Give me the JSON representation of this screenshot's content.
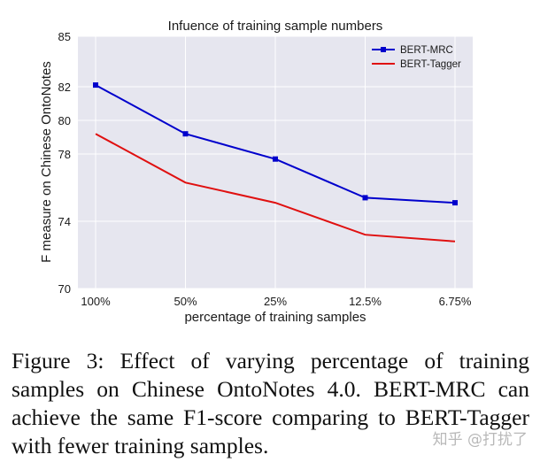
{
  "chart_data": {
    "type": "line",
    "title": "Infuence of training sample numbers",
    "xlabel": "percentage of training samples",
    "ylabel": "F measure on Chinese OntoNotes",
    "categories": [
      "100%",
      "50%",
      "25%",
      "12.5%",
      "6.75%"
    ],
    "yticks": [
      70,
      74,
      78,
      80,
      82,
      85
    ],
    "ylim": [
      70,
      85
    ],
    "grid": true,
    "legend_position": "top-right",
    "series": [
      {
        "name": "BERT-MRC",
        "color": "#0000cc",
        "marker": "square",
        "values": [
          82.1,
          79.2,
          77.7,
          75.4,
          75.1
        ]
      },
      {
        "name": "BERT-Tagger",
        "color": "#e01010",
        "marker": "none",
        "values": [
          79.2,
          76.3,
          75.1,
          73.2,
          72.8
        ]
      }
    ]
  },
  "caption": "Figure 3:  Effect of varying percentage of training samples on Chinese OntoNotes 4.0.  BERT-MRC can achieve the same F1-score comparing to BERT-Tagger with fewer training samples.",
  "watermark": "知乎 @打扰了"
}
